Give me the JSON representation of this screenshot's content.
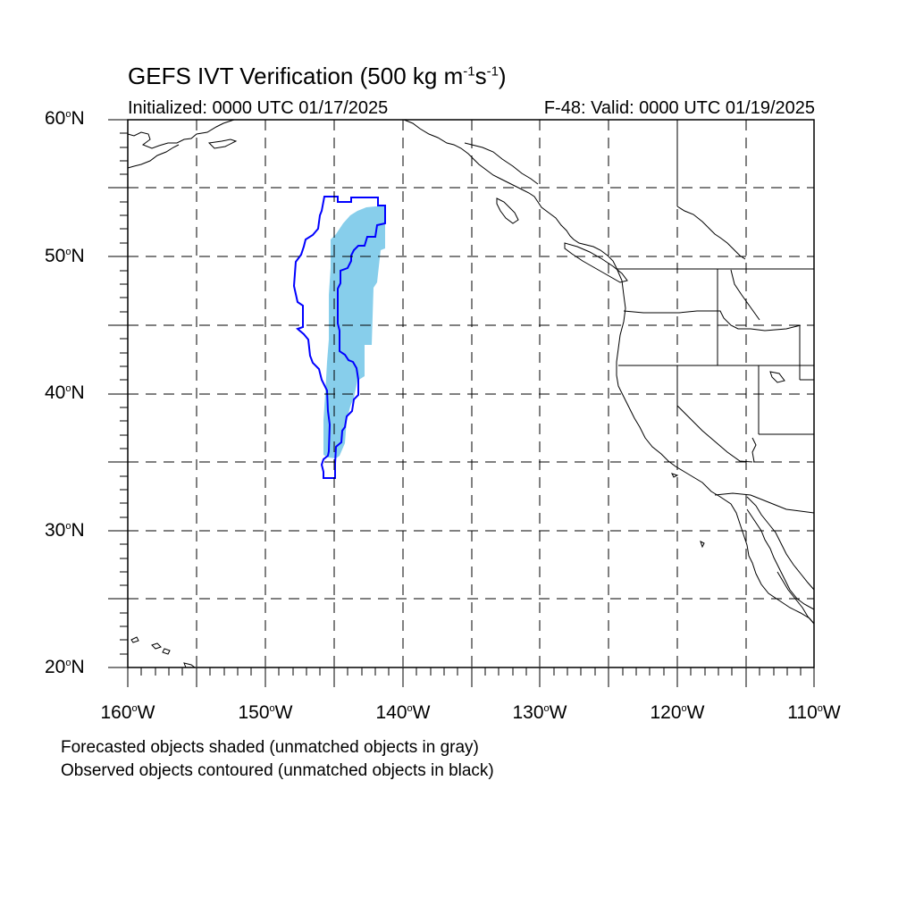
{
  "title": "GEFS IVT Verification (500 kg m",
  "title_sup1": "-1",
  "title_mid": "s",
  "title_sup2": "-1",
  "title_end": ")",
  "initialized": "Initialized: 0000 UTC 01/17/2025",
  "valid": "F-48: Valid: 0000 UTC 01/19/2025",
  "lat_labels": [
    "60",
    "50",
    "40",
    "30",
    "20"
  ],
  "lat_suffix": "N",
  "lon_labels": [
    "160",
    "150",
    "140",
    "130",
    "120",
    "110"
  ],
  "lon_suffix": "W",
  "notes": {
    "line1": "Forecasted objects shaded (unmatched objects in gray)",
    "line2": "Observed objects contoured (unmatched objects in black)"
  },
  "colors": {
    "forecast_fill": "#87ceeb",
    "observed_contour": "#0000ff",
    "coastline": "#000000",
    "grid": "#000000"
  }
}
